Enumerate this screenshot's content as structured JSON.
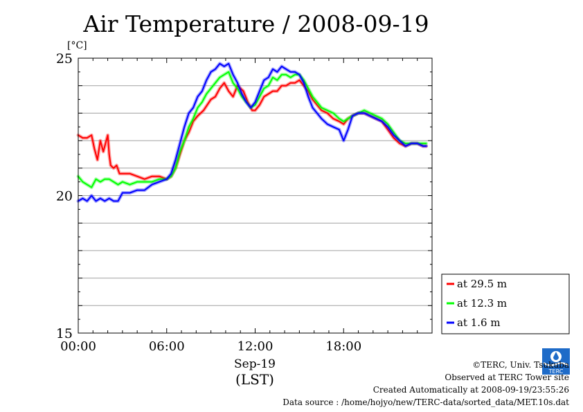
{
  "chart_data": {
    "type": "line",
    "title": "Air Temperature / 2008-09-19",
    "ylabel": "[°C]",
    "xlabel_date": "Sep-19",
    "xlabel_tz": "(LST)",
    "ylim": [
      15,
      25
    ],
    "yticks": [
      "25",
      "20",
      "15"
    ],
    "xlim_hours": [
      0,
      24
    ],
    "xticks": [
      "00:00",
      "06:00",
      "12:00",
      "18:00"
    ],
    "grid": "horizontal",
    "legend_position": "bottom-right",
    "series": [
      {
        "name": "at 29.5 m",
        "color": "#ff0000",
        "x": [
          0,
          0.3,
          0.6,
          0.9,
          1.1,
          1.3,
          1.5,
          1.7,
          2.0,
          2.1,
          2.2,
          2.4,
          2.6,
          2.8,
          3.0,
          3.5,
          4.0,
          4.5,
          5.0,
          5.5,
          6.0,
          6.3,
          6.6,
          6.9,
          7.2,
          7.5,
          7.8,
          8.1,
          8.5,
          9.0,
          9.3,
          9.6,
          9.9,
          10.2,
          10.5,
          10.8,
          11.2,
          11.5,
          11.8,
          12.0,
          12.3,
          12.6,
          12.9,
          13.2,
          13.5,
          13.8,
          14.1,
          14.4,
          14.7,
          15.0,
          15.3,
          15.6,
          15.9,
          16.2,
          16.5,
          16.9,
          17.3,
          17.7,
          18.0,
          18.3,
          18.6,
          19.0,
          19.4,
          19.8,
          20.2,
          20.6,
          21.0,
          21.4,
          21.8,
          22.2,
          22.6,
          23.0,
          23.4,
          23.6
        ],
        "values": [
          22.2,
          22.1,
          22.1,
          22.2,
          21.7,
          21.3,
          22.0,
          21.6,
          22.2,
          21.5,
          21.1,
          21.0,
          21.1,
          20.8,
          20.8,
          20.8,
          20.7,
          20.6,
          20.7,
          20.7,
          20.6,
          20.7,
          21.0,
          21.5,
          22.0,
          22.3,
          22.7,
          22.9,
          23.1,
          23.5,
          23.6,
          23.9,
          24.1,
          23.8,
          23.6,
          24.0,
          23.8,
          23.4,
          23.1,
          23.1,
          23.3,
          23.6,
          23.7,
          23.8,
          23.8,
          24.0,
          24.0,
          24.1,
          24.1,
          24.2,
          24.0,
          23.8,
          23.5,
          23.3,
          23.1,
          23.0,
          22.8,
          22.7,
          22.6,
          22.8,
          22.9,
          23.0,
          23.0,
          22.9,
          22.8,
          22.7,
          22.4,
          22.1,
          21.9,
          21.8,
          21.9,
          21.9,
          21.8,
          21.8
        ]
      },
      {
        "name": "at 12.3 m",
        "color": "#00ff00",
        "x": [
          0,
          0.3,
          0.6,
          0.9,
          1.2,
          1.5,
          1.8,
          2.1,
          2.4,
          2.7,
          3.0,
          3.5,
          4.0,
          4.5,
          5.0,
          5.5,
          6.0,
          6.3,
          6.6,
          6.9,
          7.2,
          7.5,
          7.8,
          8.1,
          8.4,
          8.7,
          9.0,
          9.3,
          9.6,
          9.9,
          10.2,
          10.5,
          10.8,
          11.1,
          11.4,
          11.7,
          12.0,
          12.3,
          12.6,
          12.9,
          13.2,
          13.5,
          13.8,
          14.1,
          14.4,
          14.7,
          15.0,
          15.3,
          15.6,
          15.9,
          16.2,
          16.5,
          16.9,
          17.3,
          17.7,
          18.0,
          18.3,
          18.6,
          19.0,
          19.4,
          19.8,
          20.2,
          20.6,
          21.0,
          21.4,
          21.8,
          22.2,
          22.6,
          23.0,
          23.4,
          23.6
        ],
        "values": [
          20.7,
          20.5,
          20.4,
          20.3,
          20.6,
          20.5,
          20.6,
          20.6,
          20.5,
          20.4,
          20.5,
          20.4,
          20.5,
          20.5,
          20.5,
          20.6,
          20.6,
          20.7,
          21.0,
          21.6,
          22.0,
          22.5,
          22.8,
          23.2,
          23.4,
          23.7,
          23.9,
          24.1,
          24.3,
          24.4,
          24.5,
          24.1,
          23.9,
          23.6,
          23.4,
          23.2,
          23.3,
          23.6,
          23.9,
          24.0,
          24.3,
          24.2,
          24.4,
          24.4,
          24.3,
          24.4,
          24.4,
          24.2,
          23.9,
          23.6,
          23.4,
          23.2,
          23.1,
          23.0,
          22.8,
          22.7,
          22.8,
          22.9,
          23.0,
          23.1,
          23.0,
          22.9,
          22.8,
          22.6,
          22.3,
          22.0,
          21.9,
          21.9,
          21.9,
          21.9,
          21.9
        ]
      },
      {
        "name": "at 1.6 m",
        "color": "#0000ff",
        "x": [
          0,
          0.3,
          0.6,
          0.9,
          1.2,
          1.5,
          1.8,
          2.1,
          2.4,
          2.7,
          3.0,
          3.5,
          4.0,
          4.5,
          5.0,
          5.5,
          6.0,
          6.3,
          6.6,
          6.9,
          7.2,
          7.5,
          7.8,
          8.1,
          8.4,
          8.7,
          9.0,
          9.3,
          9.6,
          9.9,
          10.2,
          10.5,
          10.8,
          11.1,
          11.4,
          11.7,
          12.0,
          12.3,
          12.6,
          12.9,
          13.2,
          13.5,
          13.8,
          14.1,
          14.4,
          14.7,
          15.0,
          15.3,
          15.6,
          15.9,
          16.2,
          16.5,
          16.9,
          17.3,
          17.7,
          18.0,
          18.3,
          18.6,
          19.0,
          19.4,
          19.8,
          20.2,
          20.6,
          21.0,
          21.4,
          21.8,
          22.2,
          22.6,
          23.0,
          23.4,
          23.6
        ],
        "values": [
          19.8,
          19.9,
          19.8,
          20.0,
          19.8,
          19.9,
          19.8,
          19.9,
          19.8,
          19.8,
          20.1,
          20.1,
          20.2,
          20.2,
          20.4,
          20.5,
          20.6,
          20.8,
          21.3,
          21.9,
          22.5,
          23.0,
          23.2,
          23.6,
          23.8,
          24.2,
          24.5,
          24.6,
          24.8,
          24.7,
          24.8,
          24.4,
          24.1,
          23.7,
          23.4,
          23.2,
          23.4,
          23.8,
          24.2,
          24.3,
          24.6,
          24.5,
          24.7,
          24.6,
          24.5,
          24.5,
          24.4,
          24.1,
          23.6,
          23.2,
          23.0,
          22.8,
          22.6,
          22.5,
          22.4,
          22.0,
          22.4,
          22.9,
          23.0,
          23.0,
          22.9,
          22.8,
          22.7,
          22.5,
          22.2,
          22.0,
          21.8,
          21.9,
          21.9,
          21.8,
          21.8
        ]
      }
    ]
  },
  "footer": {
    "copyright": "©TERC, Univ. Tsukuba",
    "observed": "Observed at TERC Tower site",
    "created": "Created Automatically at 2008-09-19/23:55:26",
    "source": "Data source : /home/hojyo/new/TERC-data/sorted_data/MET.10s.dat"
  },
  "logo": {
    "text": "TERC",
    "color": "#1e6bc8"
  }
}
